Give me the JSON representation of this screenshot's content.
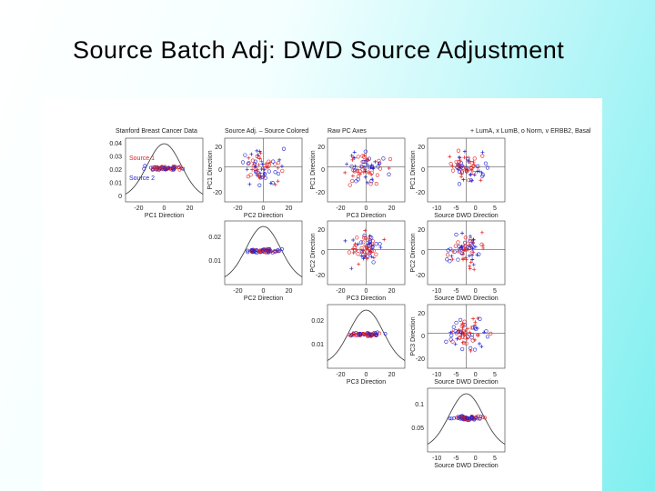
{
  "title": "Source Batch Adj:  DWD Source Adjustment",
  "panel_titles": [
    "Stanford Breast Cancer Data",
    "Source Adj. – Source Colored",
    "Raw PC Axes",
    "+ LumA, x LumB, o Norm, v ERBB2, Basal"
  ],
  "legend": [
    "Source 1",
    "Source 2"
  ],
  "axis_labels": [
    "PC1 Direction",
    "PC2 Direction",
    "PC3 Direction",
    "Source DWD Direction"
  ],
  "x_ticks": [
    [
      -20,
      0,
      20
    ],
    [
      -20,
      0,
      20
    ],
    [
      -20,
      0,
      20
    ],
    [
      -10,
      -5,
      0,
      5
    ]
  ],
  "density_ticks": [
    [
      0.04,
      0.03,
      0.02,
      0.01,
      0
    ],
    [
      0.02,
      0.01
    ],
    [
      0.02,
      0.01
    ],
    [
      0.1,
      0.05
    ]
  ],
  "scatter_yticks": [
    20,
    0,
    -20
  ]
}
